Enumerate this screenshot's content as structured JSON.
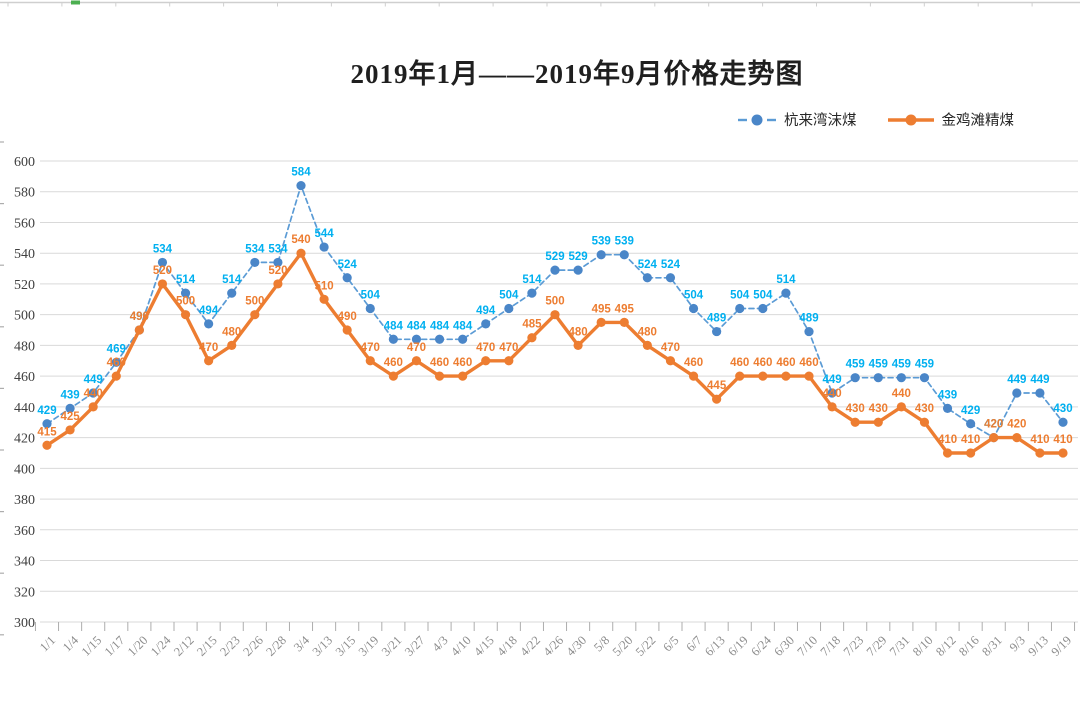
{
  "title": "2019年1月——2019年9月价格走势图",
  "legend": [
    {
      "label": "杭来湾沫煤"
    },
    {
      "label": "金鸡滩精煤"
    }
  ],
  "chart_data": {
    "type": "line",
    "title": "2019年1月——2019年9月价格走势图",
    "categories": [
      "1/1",
      "1/4",
      "1/15",
      "1/17",
      "1/20",
      "1/24",
      "2/12",
      "2/15",
      "2/23",
      "2/26",
      "2/28",
      "3/4",
      "3/13",
      "3/15",
      "3/19",
      "3/21",
      "3/27",
      "4/3",
      "4/10",
      "4/15",
      "4/18",
      "4/22",
      "4/26",
      "4/30",
      "5/8",
      "5/20",
      "5/22",
      "6/5",
      "6/7",
      "6/13",
      "6/19",
      "6/24",
      "6/30",
      "7/10",
      "7/18",
      "7/23",
      "7/29",
      "7/31",
      "8/10",
      "8/12",
      "8/16",
      "8/31",
      "9/3",
      "9/13",
      "9/19"
    ],
    "series": [
      {
        "name": "杭来湾沫煤",
        "style": "dashed",
        "line_color": "#5B9BD5",
        "marker_color": "#4A86C8",
        "label_color": "#00B0F0",
        "values": [
          429,
          439,
          449,
          469,
          490,
          534,
          514,
          494,
          514,
          534,
          534,
          584,
          544,
          524,
          504,
          484,
          484,
          484,
          484,
          494,
          504,
          514,
          529,
          529,
          539,
          539,
          524,
          524,
          504,
          489,
          504,
          504,
          514,
          489,
          449,
          459,
          459,
          459,
          459,
          439,
          429,
          420,
          449,
          449,
          430
        ]
      },
      {
        "name": "金鸡滩精煤",
        "style": "solid",
        "line_color": "#ED7D31",
        "marker_color": "#ED7D31",
        "label_color": "#ED7D31",
        "values": [
          415,
          425,
          440,
          460,
          490,
          520,
          500,
          470,
          480,
          500,
          520,
          540,
          510,
          490,
          470,
          460,
          470,
          460,
          460,
          470,
          470,
          485,
          500,
          480,
          495,
          495,
          480,
          470,
          460,
          445,
          460,
          460,
          460,
          460,
          440,
          430,
          430,
          440,
          430,
          410,
          410,
          420,
          420,
          410,
          410
        ]
      }
    ],
    "ylim": [
      300,
      600
    ],
    "ytick_step": 20,
    "grid": true,
    "legend_position": "top-right",
    "colors": {
      "grid": "#D9D9D9",
      "axis_tick": "#ADADAD",
      "y_label": "#404040",
      "x_label": "#8C8C8C",
      "top_strip_line": "#CFCFCF",
      "top_strip_mark": "#4CAF50"
    }
  }
}
